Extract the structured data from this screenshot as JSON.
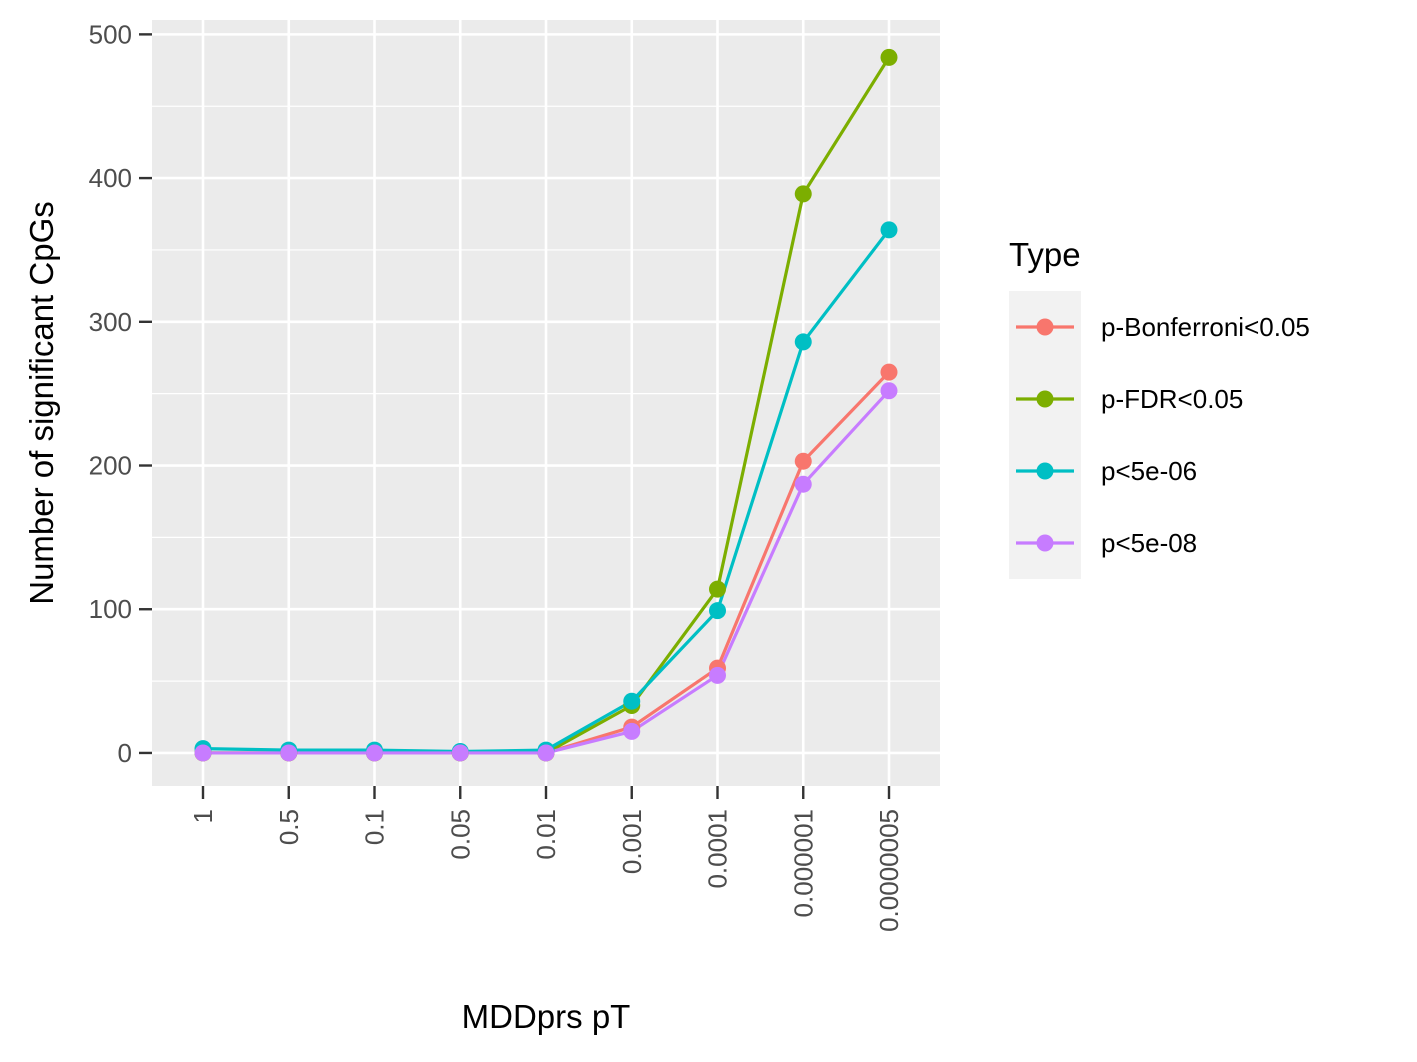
{
  "chart_data": {
    "type": "line",
    "xlabel": "MDDprs pT",
    "ylabel": "Number of significant CpGs",
    "categories": [
      "1",
      "0.5",
      "0.1",
      "0.05",
      "0.01",
      "0.001",
      "0.0001",
      "0.000001",
      "0.0000005"
    ],
    "ylim": [
      -23,
      510
    ],
    "yticks": [
      0,
      100,
      200,
      300,
      400,
      500
    ],
    "grid": true,
    "legend": {
      "title": "Type",
      "position": "right"
    },
    "series": [
      {
        "name": "p-Bonferroni<0.05",
        "color": "#F8766D",
        "values": [
          0,
          0,
          0,
          0,
          0,
          18,
          59,
          203,
          265
        ]
      },
      {
        "name": "p-FDR<0.05",
        "color": "#7CAE00",
        "values": [
          0,
          0,
          0,
          0,
          0,
          33,
          114,
          389,
          484
        ]
      },
      {
        "name": "p<5e-06",
        "color": "#00BFC4",
        "values": [
          3,
          2,
          2,
          1,
          2,
          36,
          99,
          286,
          364
        ]
      },
      {
        "name": "p<5e-08",
        "color": "#C77CFF",
        "values": [
          0,
          0,
          0,
          0,
          0,
          15,
          54,
          187,
          252
        ]
      }
    ]
  }
}
